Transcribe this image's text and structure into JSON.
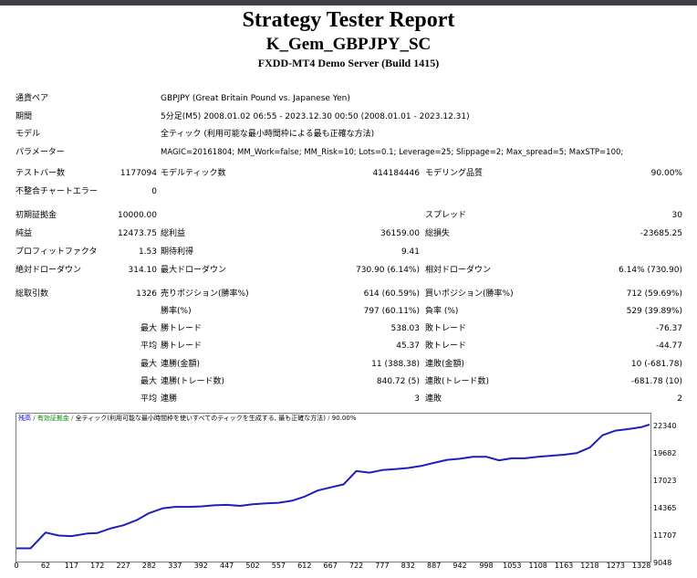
{
  "header": {
    "title": "Strategy Tester Report",
    "ea_name": "K_Gem_GBPJPY_SC",
    "server": "FXDD-MT4 Demo Server (Build 1415)"
  },
  "info": {
    "symbol_label": "通貨ペア",
    "symbol_value": "GBPJPY (Great Britain Pound vs. Japanese Yen)",
    "period_label": "期間",
    "period_value": "5分足(M5) 2008.01.02 06:55 - 2023.12.30 00:50 (2008.01.01 - 2023.12.31)",
    "model_label": "モデル",
    "model_value": "全ティック (利用可能な最小時間枠による最も正確な方法)",
    "params_label": "パラメーター",
    "params_value": "MAGIC=20161804; MM_Work=false; MM_Risk=10; Lots=0.1; Leverage=25; Slippage=2; Max_spread=5; MaxSTP=100;"
  },
  "stats": {
    "bars_label": "テストバー数",
    "bars_value": "1177094",
    "ticks_label": "モデルティック数",
    "ticks_value": "414184446",
    "quality_label": "モデリング品質",
    "quality_value": "90.00%",
    "mismatch_label": "不整合チャートエラー",
    "mismatch_value": "0",
    "deposit_label": "初期証拠金",
    "deposit_value": "10000.00",
    "spread_label": "スプレッド",
    "spread_value": "30",
    "net_label": "純益",
    "net_value": "12473.75",
    "gross_profit_label": "総利益",
    "gross_profit_value": "36159.00",
    "gross_loss_label": "総損失",
    "gross_loss_value": "-23685.25",
    "pf_label": "プロフィットファクタ",
    "pf_value": "1.53",
    "expected_label": "期待利得",
    "expected_value": "9.41",
    "abs_dd_label": "絶対ドローダウン",
    "abs_dd_value": "314.10",
    "max_dd_label": "最大ドローダウン",
    "max_dd_value": "730.90 (6.14%)",
    "rel_dd_label": "相対ドローダウン",
    "rel_dd_value": "6.14% (730.90)",
    "total_label": "総取引数",
    "total_value": "1326",
    "short_label": "売りポジション(勝率%)",
    "short_value": "614 (60.59%)",
    "long_label": "買いポジション(勝率%)",
    "long_value": "712 (59.69%)",
    "win_pct_label": "勝率(%)",
    "win_pct_value": "797 (60.11%)",
    "loss_pct_label": "負率 (%)",
    "loss_pct_value": "529 (39.89%)",
    "max_word": "最大",
    "avg_word": "平均",
    "largest_profit_label": "勝トレード",
    "largest_profit_value": "538.03",
    "largest_loss_label": "敗トレード",
    "largest_loss_value": "-76.37",
    "avg_profit_label": "勝トレード",
    "avg_profit_value": "45.37",
    "avg_loss_label": "敗トレード",
    "avg_loss_value": "-44.77",
    "max_cons_wins_label": "連勝(金額)",
    "max_cons_wins_value": "11 (388.38)",
    "max_cons_losses_label": "連敗(金額)",
    "max_cons_losses_value": "10 (-681.78)",
    "max_cons_profit_label": "連勝(トレード数)",
    "max_cons_profit_value": "840.72 (5)",
    "max_cons_loss_label": "連敗(トレード数)",
    "max_cons_loss_value": "-681.78 (10)",
    "avg_cons_wins_label": "連勝",
    "avg_cons_wins_value": "3",
    "avg_cons_losses_label": "連敗",
    "avg_cons_losses_value": "2"
  },
  "chart_legend": {
    "balance": "残高",
    "equity": "有効証拠金",
    "model": "全ティック(利用可能な最小時間枠を使いすべてのティックを生成する, 最も正確な方法)",
    "quality": "90.00%"
  },
  "chart_data": {
    "type": "line",
    "x": [
      0,
      30,
      62,
      90,
      117,
      150,
      172,
      200,
      227,
      255,
      282,
      310,
      337,
      365,
      392,
      420,
      447,
      475,
      502,
      530,
      557,
      585,
      612,
      640,
      667,
      695,
      722,
      750,
      777,
      805,
      832,
      860,
      887,
      915,
      942,
      970,
      998,
      1025,
      1053,
      1080,
      1108,
      1135,
      1163,
      1190,
      1218,
      1245,
      1273,
      1300,
      1328,
      1345
    ],
    "series": [
      {
        "values": [
          10250,
          10250,
          11800,
          11500,
          11450,
          11700,
          11750,
          12200,
          12500,
          13000,
          13700,
          14150,
          14300,
          14300,
          14350,
          14450,
          14500,
          14400,
          14550,
          14650,
          14700,
          14900,
          15300,
          15900,
          16200,
          16500,
          17800,
          17650,
          17900,
          18000,
          18100,
          18300,
          18600,
          18900,
          19000,
          19200,
          19200,
          18850,
          19050,
          19050,
          19200,
          19300,
          19400,
          19550,
          20100,
          21300,
          21750,
          21900,
          22100,
          22340
        ]
      }
    ],
    "ytick_labels": [
      "22340",
      "19682",
      "17023",
      "14365",
      "11707",
      "9048"
    ],
    "xtick_labels": [
      "0",
      "62",
      "117",
      "172",
      "227",
      "282",
      "337",
      "392",
      "447",
      "502",
      "557",
      "612",
      "667",
      "722",
      "777",
      "832",
      "887",
      "942",
      "998",
      "1053",
      "1108",
      "1163",
      "1218",
      "1273",
      "1328"
    ],
    "ylim": [
      9048,
      22340
    ],
    "xlim": [
      0,
      1345
    ],
    "grid": false,
    "color": "#1f1fbf"
  }
}
